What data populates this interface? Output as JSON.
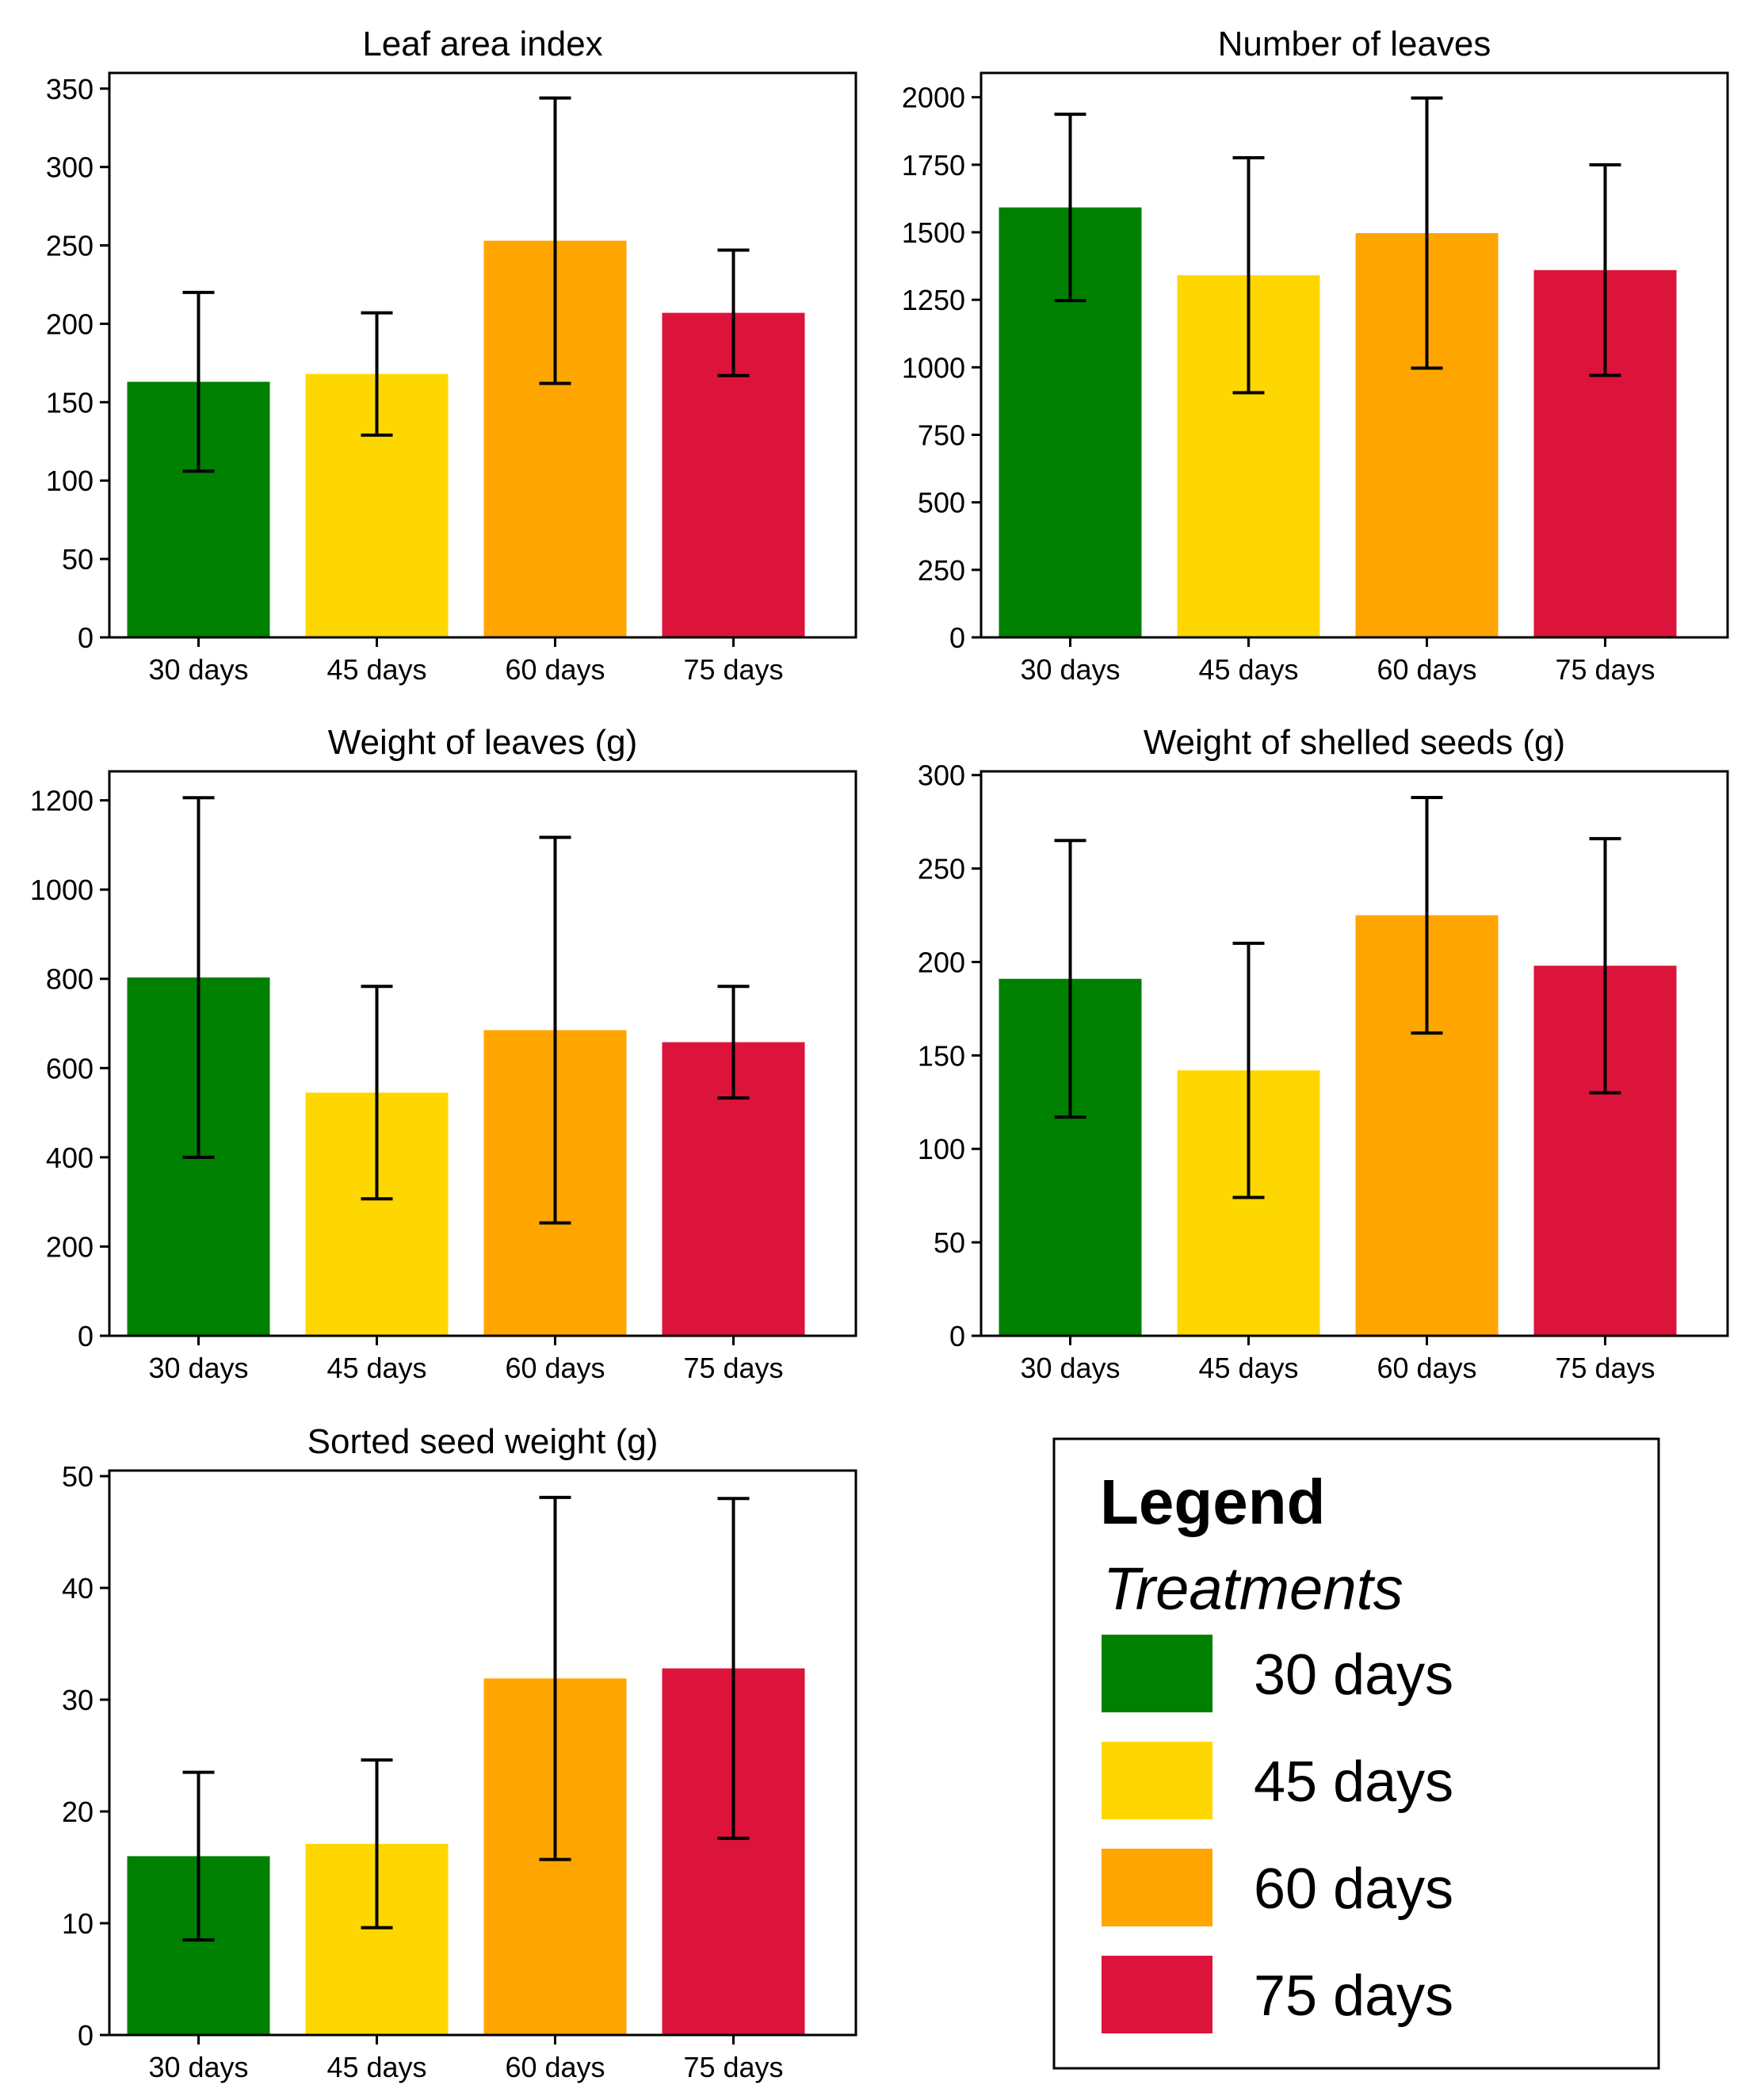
{
  "legend": {
    "title": "Legend",
    "subtitle": "Treatments",
    "items": [
      {
        "label": "30 days",
        "color": "#008000"
      },
      {
        "label": "45 days",
        "color": "#FFD700"
      },
      {
        "label": "60 days",
        "color": "#FFA500"
      },
      {
        "label": "75 days",
        "color": "#DC143C"
      }
    ]
  },
  "chart_data": [
    {
      "type": "bar",
      "title": "Leaf area index",
      "categories": [
        "30 days",
        "45 days",
        "60 days",
        "75 days"
      ],
      "values": [
        163,
        168,
        253,
        207
      ],
      "errors": [
        57,
        39,
        91,
        40
      ],
      "colors": [
        "#008000",
        "#FFD700",
        "#FFA500",
        "#DC143C"
      ],
      "ylim": [
        0,
        360
      ],
      "yticks": [
        0,
        50,
        100,
        150,
        200,
        250,
        300,
        350
      ],
      "grid": false
    },
    {
      "type": "bar",
      "title": "Number of leaves",
      "categories": [
        "30 days",
        "45 days",
        "60 days",
        "75 days"
      ],
      "values": [
        1592,
        1341,
        1497,
        1360
      ],
      "errors": [
        345,
        435,
        500,
        390
      ],
      "colors": [
        "#008000",
        "#FFD700",
        "#FFA500",
        "#DC143C"
      ],
      "ylim": [
        0,
        2090
      ],
      "yticks": [
        0,
        250,
        500,
        750,
        1000,
        1250,
        1500,
        1750,
        2000
      ],
      "grid": false
    },
    {
      "type": "bar",
      "title": "Weight of leaves (g)",
      "categories": [
        "30 days",
        "45 days",
        "60 days",
        "75 days"
      ],
      "values": [
        803,
        545,
        685,
        658
      ],
      "errors": [
        403,
        238,
        432,
        125
      ],
      "colors": [
        "#008000",
        "#FFD700",
        "#FFA500",
        "#DC143C"
      ],
      "ylim": [
        0,
        1265
      ],
      "yticks": [
        0,
        200,
        400,
        600,
        800,
        1000,
        1200
      ],
      "grid": false
    },
    {
      "type": "bar",
      "title": "Weight of shelled seeds (g)",
      "categories": [
        "30 days",
        "45 days",
        "60 days",
        "75 days"
      ],
      "values": [
        191,
        142,
        225,
        198
      ],
      "errors": [
        74,
        68,
        63,
        68
      ],
      "colors": [
        "#008000",
        "#FFD700",
        "#FFA500",
        "#DC143C"
      ],
      "ylim": [
        0,
        302
      ],
      "yticks": [
        0,
        50,
        100,
        150,
        200,
        250,
        300
      ],
      "grid": false
    },
    {
      "type": "bar",
      "title": "Sorted seed weight (g)",
      "categories": [
        "30 days",
        "45 days",
        "60 days",
        "75 days"
      ],
      "values": [
        16,
        17.1,
        31.9,
        32.8
      ],
      "errors": [
        7.5,
        7.5,
        16.2,
        15.2
      ],
      "colors": [
        "#008000",
        "#FFD700",
        "#FFA500",
        "#DC143C"
      ],
      "ylim": [
        0,
        50.5
      ],
      "yticks": [
        0,
        10,
        20,
        30,
        40,
        50
      ],
      "grid": false
    }
  ]
}
